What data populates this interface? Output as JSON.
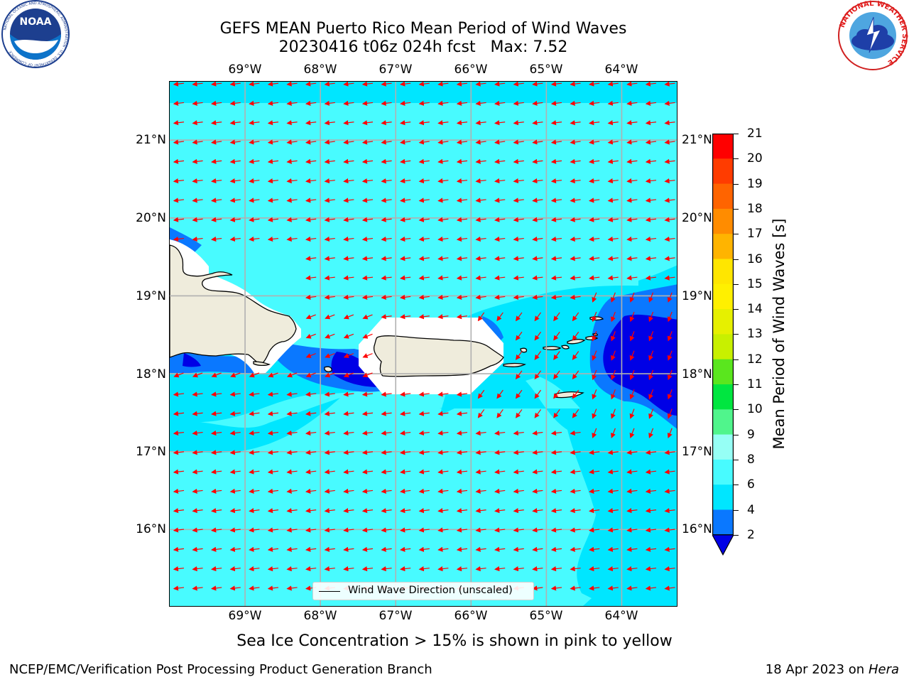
{
  "header": {
    "title_line1": "GEFS MEAN Puerto Rico Mean Period of Wind Waves",
    "title_line2": "20230416 t06z 024h fcst   Max: 7.52"
  },
  "logos": {
    "left": {
      "icon": "noaa-logo",
      "text": "NOAA",
      "ring_text": "NATIONAL OCEANIC AND ATMOSPHERIC ADMINISTRATION · U.S. DEPARTMENT OF COMMERCE"
    },
    "right": {
      "icon": "national-weather-service-logo",
      "ring_text": "NATIONAL WEATHER SERVICE"
    }
  },
  "map": {
    "longitude_labels": [
      "69°W",
      "68°W",
      "67°W",
      "66°W",
      "65°W",
      "64°W"
    ],
    "latitude_labels": [
      "21°N",
      "20°N",
      "19°N",
      "18°N",
      "17°N",
      "16°N"
    ],
    "longitudes": [
      -69,
      -68,
      -67,
      -66,
      -65,
      -64
    ],
    "latitudes": [
      21,
      20,
      19,
      18,
      17,
      16
    ],
    "extent": {
      "lon_min": -70.0,
      "lon_max": -63.25,
      "lat_min": 15.0,
      "lat_max": 21.75
    },
    "arrow_color": "#ff0000",
    "land_color": "#efecdc",
    "wind_direction_description": "mostly from east to west, turning toward southwest east of the Virgin Islands"
  },
  "legend": {
    "label": "Wind Wave Direction (unscaled)"
  },
  "colorbar": {
    "label": "Mean Period of Wind Waves [s]",
    "ticks": [
      "21",
      "20",
      "19",
      "18",
      "17",
      "16",
      "15",
      "14",
      "13",
      "12",
      "11",
      "10",
      "9",
      "8",
      "6",
      "4",
      "2"
    ],
    "bins": [
      {
        "from": 2,
        "to": 4,
        "color": "#0a78ff"
      },
      {
        "from": 4,
        "to": 6,
        "color": "#00e6ff"
      },
      {
        "from": 6,
        "to": 8,
        "color": "#48fbff"
      },
      {
        "from": 8,
        "to": 9,
        "color": "#96fff5"
      },
      {
        "from": 9,
        "to": 10,
        "color": "#50f58c"
      },
      {
        "from": 10,
        "to": 11,
        "color": "#00e640"
      },
      {
        "from": 11,
        "to": 12,
        "color": "#5ae61e"
      },
      {
        "from": 12,
        "to": 13,
        "color": "#c8f000"
      },
      {
        "from": 13,
        "to": 14,
        "color": "#e6f000"
      },
      {
        "from": 14,
        "to": 15,
        "color": "#fff000"
      },
      {
        "from": 15,
        "to": 16,
        "color": "#ffe600"
      },
      {
        "from": 16,
        "to": 17,
        "color": "#ffb400"
      },
      {
        "from": 17,
        "to": 18,
        "color": "#ff8c00"
      },
      {
        "from": 18,
        "to": 19,
        "color": "#ff6400"
      },
      {
        "from": 19,
        "to": 20,
        "color": "#ff3c00"
      },
      {
        "from": 20,
        "to": 21,
        "color": "#ff0000"
      }
    ],
    "under_color": "#0000e6"
  },
  "sea_ice_note": "Sea Ice Concentration > 15% is shown in pink to yellow",
  "footer": {
    "left": "NCEP/EMC/Verification Post Processing Product Generation Branch",
    "right_date": "18 Apr 2023 on ",
    "right_machine": "Hera"
  }
}
